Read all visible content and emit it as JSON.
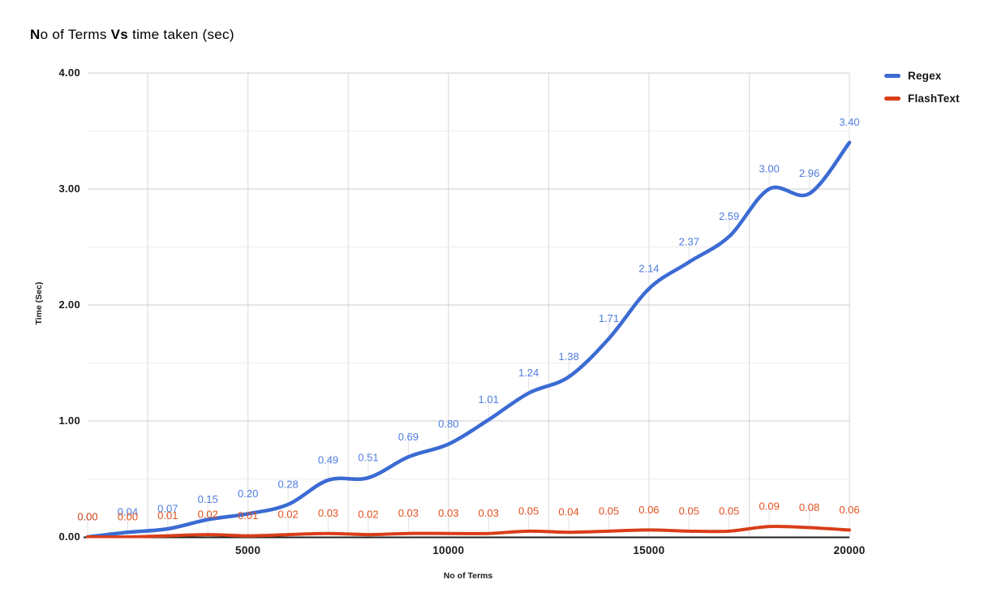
{
  "header": {
    "parts": [
      {
        "text": "N",
        "bold": true
      },
      {
        "text": "o of Terms ",
        "bold": false
      },
      {
        "text": "Vs",
        "bold": true
      },
      {
        "text": " time taken (sec)",
        "bold": false
      }
    ]
  },
  "chart_data": {
    "type": "line",
    "title": "No of Terms Vs time taken (sec)",
    "xlabel": "No of Terms",
    "ylabel": "Time (Sec)",
    "smooth": true,
    "grid": true,
    "legend_position": "right",
    "xlim": [
      1000,
      20000
    ],
    "ylim": [
      0,
      4
    ],
    "x": [
      1000,
      2000,
      3000,
      4000,
      5000,
      6000,
      7000,
      8000,
      9000,
      10000,
      11000,
      12000,
      13000,
      14000,
      15000,
      16000,
      17000,
      18000,
      19000,
      20000
    ],
    "x_ticks": [
      {
        "label": "5000",
        "value": 5000
      },
      {
        "label": "10000",
        "value": 10000
      },
      {
        "label": "15000",
        "value": 15000
      },
      {
        "label": "20000",
        "value": 20000
      }
    ],
    "y_ticks": [
      {
        "label": "0.00",
        "value": 0
      },
      {
        "label": "1.00",
        "value": 1
      },
      {
        "label": "2.00",
        "value": 2
      },
      {
        "label": "3.00",
        "value": 3
      },
      {
        "label": "4.00",
        "value": 4
      }
    ],
    "x_minor_every": 2500,
    "y_minor_every": 0.5,
    "colors": {
      "major_gridline": "#cccccc",
      "minor_gridline": "#ececec",
      "vertical_gridline": "#d8d8d8",
      "axis_line": "#212121",
      "label_stem": "#e3e3e3"
    },
    "series": [
      {
        "name": "Regex",
        "color": "#3b6bd3",
        "label_color": "#4e7ce0",
        "values": [
          0.0,
          0.04,
          0.07,
          0.15,
          0.2,
          0.28,
          0.49,
          0.51,
          0.69,
          0.8,
          1.01,
          1.24,
          1.38,
          1.71,
          2.14,
          2.37,
          2.59,
          3.0,
          2.96,
          3.4
        ]
      },
      {
        "name": "FlashText",
        "color": "#d93e19",
        "label_color": "#e0511f",
        "values": [
          0.0,
          0.0,
          0.01,
          0.02,
          0.01,
          0.02,
          0.03,
          0.02,
          0.03,
          0.03,
          0.03,
          0.05,
          0.04,
          0.05,
          0.06,
          0.05,
          0.05,
          0.09,
          0.08,
          0.06
        ]
      }
    ]
  }
}
